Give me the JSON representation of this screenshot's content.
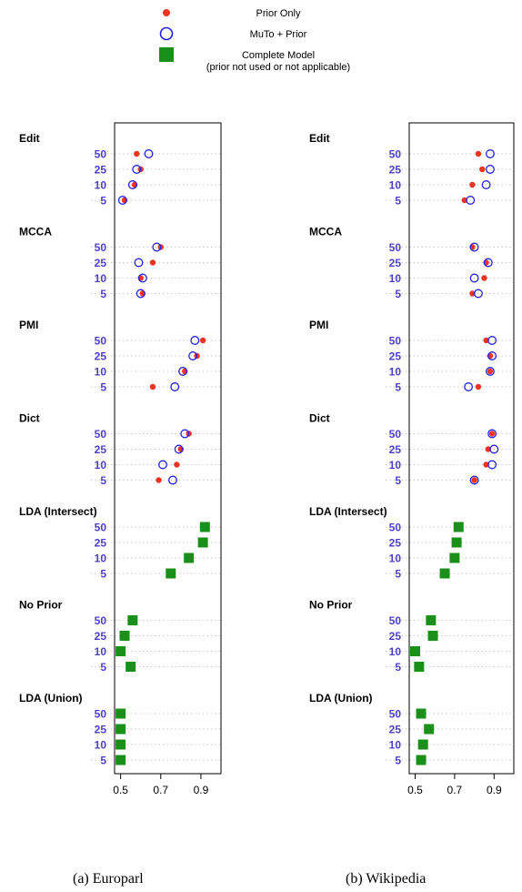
{
  "legend": [
    {
      "label": "Prior Only",
      "marker": "dot",
      "color": "#ee3322"
    },
    {
      "label": "MuTo + Prior",
      "marker": "circle",
      "color": "#2222dd"
    },
    {
      "label": "Complete Model",
      "sublabel": "(prior not used or not applicable)",
      "marker": "square",
      "color": "#1a8f1a"
    }
  ],
  "captions": {
    "left": "(a)  Europarl",
    "right": "(b)  Wikipedia"
  },
  "chart_data": [
    {
      "type": "scatter",
      "panel": "(a) Europarl",
      "x_ticks": [
        0.5,
        0.7,
        0.9
      ],
      "xlim": [
        0.47,
        1.0
      ],
      "levels": [
        "50",
        "25",
        "10",
        "5"
      ],
      "grid": "dotted horizontal",
      "groups": [
        {
          "name": "Edit",
          "series": {
            "prior_only": [
              0.58,
              0.6,
              0.57,
              0.52
            ],
            "muto_prior": [
              0.64,
              0.58,
              0.56,
              0.51
            ]
          }
        },
        {
          "name": "MCCA",
          "series": {
            "prior_only": [
              0.7,
              0.66,
              0.6,
              0.61
            ],
            "muto_prior": [
              0.68,
              0.59,
              0.61,
              0.6
            ]
          }
        },
        {
          "name": "PMI",
          "series": {
            "prior_only": [
              0.91,
              0.88,
              0.82,
              0.66
            ],
            "muto_prior": [
              0.87,
              0.86,
              0.81,
              0.77
            ]
          }
        },
        {
          "name": "Dict",
          "series": {
            "prior_only": [
              0.84,
              0.8,
              0.78,
              0.69
            ],
            "muto_prior": [
              0.82,
              0.79,
              0.71,
              0.76
            ]
          }
        },
        {
          "name": "LDA (Intersect)",
          "series": {
            "complete": [
              0.92,
              0.91,
              0.84,
              0.75
            ]
          }
        },
        {
          "name": "No Prior",
          "series": {
            "complete": [
              0.56,
              0.52,
              0.5,
              0.55
            ]
          }
        },
        {
          "name": "LDA (Union)",
          "series": {
            "complete": [
              0.5,
              0.5,
              0.5,
              0.5
            ]
          }
        }
      ]
    },
    {
      "type": "scatter",
      "panel": "(b) Wikipedia",
      "x_ticks": [
        0.5,
        0.7,
        0.9
      ],
      "xlim": [
        0.47,
        1.0
      ],
      "levels": [
        "50",
        "25",
        "10",
        "5"
      ],
      "grid": "dotted horizontal",
      "groups": [
        {
          "name": "Edit",
          "series": {
            "prior_only": [
              0.82,
              0.84,
              0.79,
              0.75
            ],
            "muto_prior": [
              0.88,
              0.88,
              0.86,
              0.78
            ]
          }
        },
        {
          "name": "MCCA",
          "series": {
            "prior_only": [
              0.79,
              0.86,
              0.85,
              0.79
            ],
            "muto_prior": [
              0.8,
              0.87,
              0.8,
              0.82
            ]
          }
        },
        {
          "name": "PMI",
          "series": {
            "prior_only": [
              0.86,
              0.88,
              0.88,
              0.82
            ],
            "muto_prior": [
              0.89,
              0.89,
              0.88,
              0.77
            ]
          }
        },
        {
          "name": "Dict",
          "series": {
            "prior_only": [
              0.89,
              0.87,
              0.86,
              0.8
            ],
            "muto_prior": [
              0.89,
              0.9,
              0.89,
              0.8
            ]
          }
        },
        {
          "name": "LDA (Intersect)",
          "series": {
            "complete": [
              0.72,
              0.71,
              0.7,
              0.65
            ]
          }
        },
        {
          "name": "No Prior",
          "series": {
            "complete": [
              0.58,
              0.59,
              0.5,
              0.52
            ]
          }
        },
        {
          "name": "LDA (Union)",
          "series": {
            "complete": [
              0.53,
              0.57,
              0.54,
              0.53
            ]
          }
        }
      ]
    }
  ]
}
